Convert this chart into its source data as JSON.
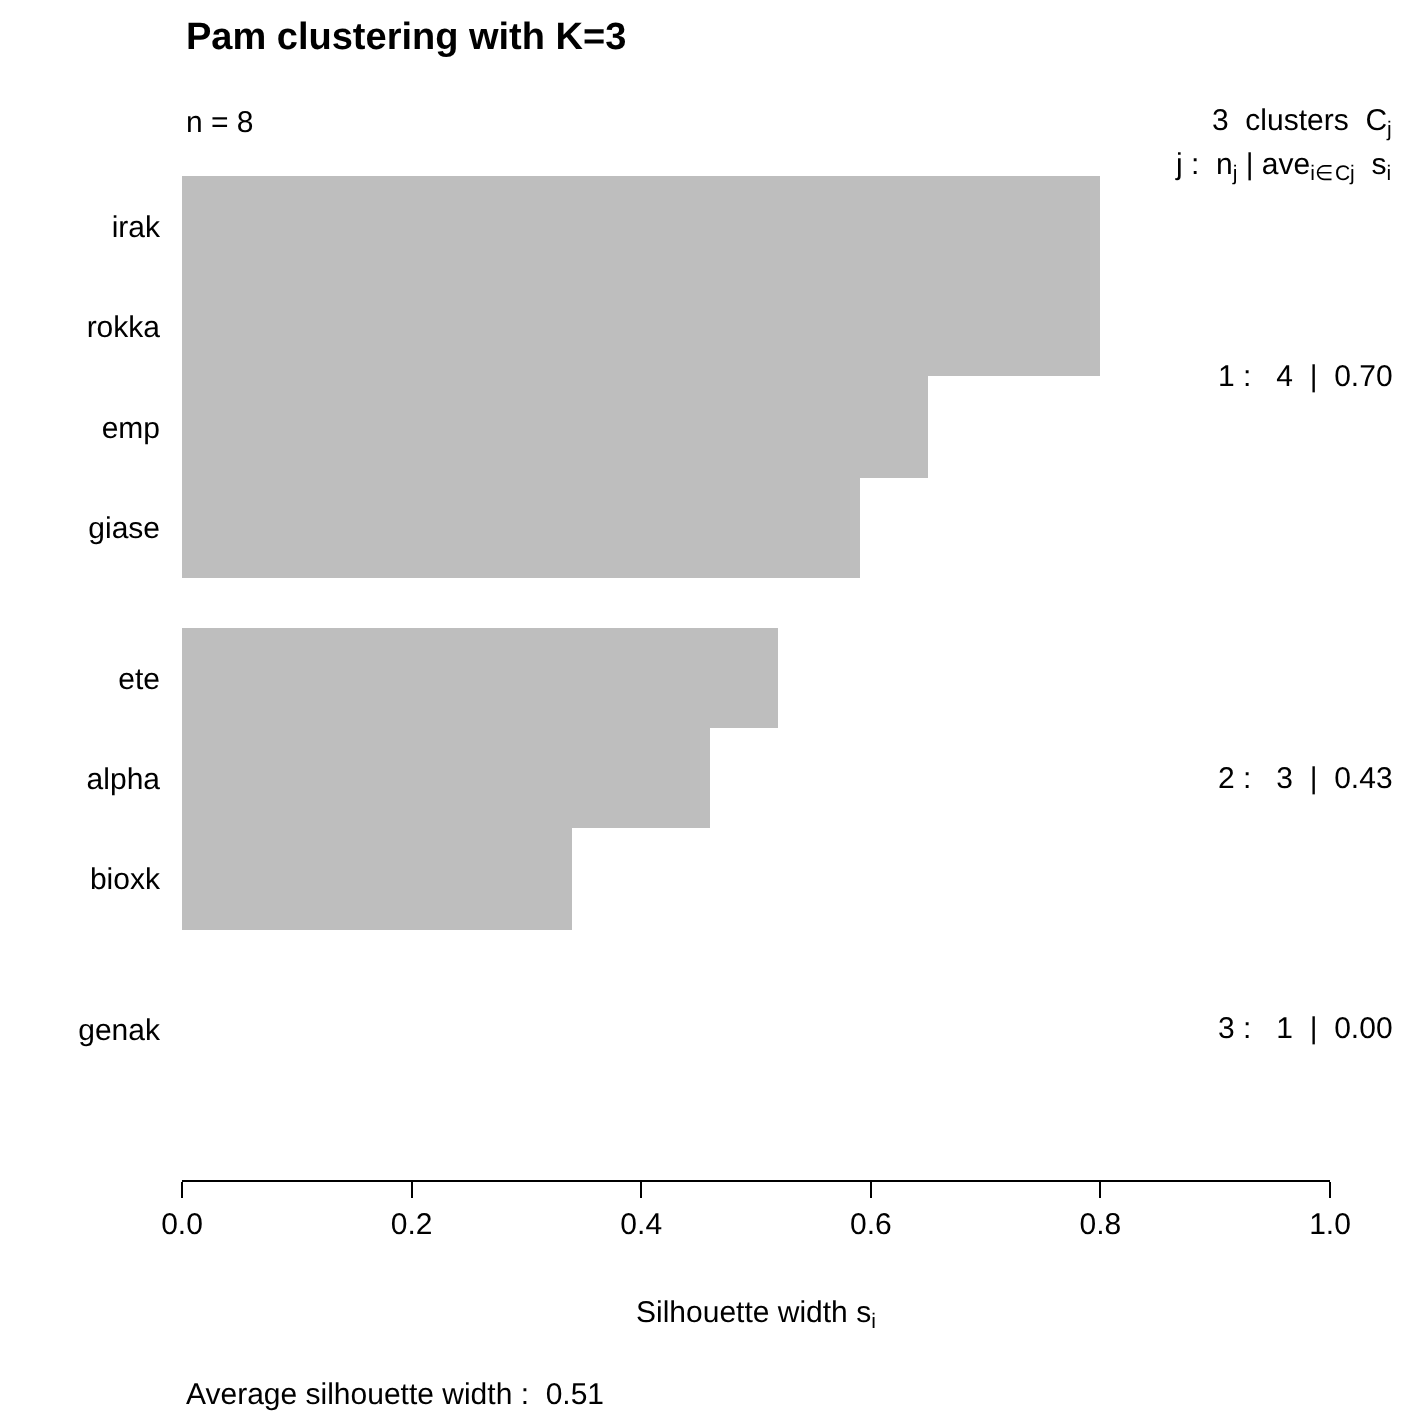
{
  "chart_data": {
    "type": "bar",
    "orientation": "horizontal",
    "title": "Pam clustering with K=3",
    "xlabel": "Silhouette width s$_{i}$",
    "categories": [
      "irak",
      "rokka",
      "emp",
      "giase",
      null,
      "ete",
      "alpha",
      "bioxk",
      null,
      "genak"
    ],
    "values": [
      0.8,
      0.8,
      0.65,
      0.59,
      null,
      0.52,
      0.46,
      0.34,
      null,
      0.0
    ],
    "color": "#bebebe",
    "xlim": [
      0,
      1
    ],
    "xticks": [
      {
        "value": 0,
        "label": "0.0"
      },
      {
        "value": 0.2,
        "label": "0.2"
      },
      {
        "value": 0.4,
        "label": "0.4"
      },
      {
        "value": 0.6,
        "label": "0.6"
      },
      {
        "value": 0.8,
        "label": "0.8"
      },
      {
        "value": 1,
        "label": "1.0"
      }
    ],
    "annotations": [
      "n = 8",
      "3  clusters  C$_{j}$",
      "j :  n$_{j}$ | ave$_{i∈Cj}$  s$_{i}$",
      "1 :   4  |  0.70",
      "2 :   3  |  0.43",
      "3 :   1  |  0.00",
      "Average silhouette width :  0.51"
    ]
  }
}
